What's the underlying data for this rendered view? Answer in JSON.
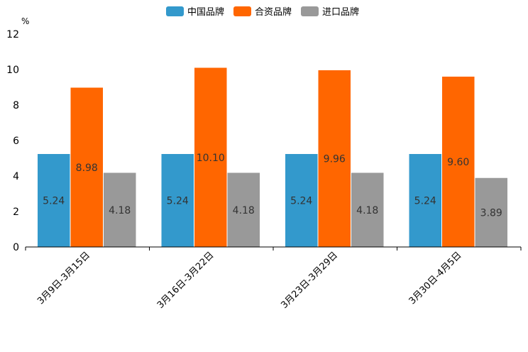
{
  "chart_data": {
    "type": "bar",
    "unit": "%",
    "categories": [
      "3月9日-3月15日",
      "3月16日-3月22日",
      "3月23日-3月29日",
      "3月30日-4月5日"
    ],
    "series": [
      {
        "name": "中国品牌",
        "color": "#3399CC",
        "values": [
          5.24,
          5.24,
          5.24,
          5.24
        ],
        "labels": [
          "5.24",
          "5.24",
          "5.24",
          "5.24"
        ]
      },
      {
        "name": "合资品牌",
        "color": "#FF6600",
        "values": [
          8.98,
          10.1,
          9.96,
          9.6
        ],
        "labels": [
          "8.98",
          "10.10",
          "9.96",
          "9.60"
        ]
      },
      {
        "name": "进口品牌",
        "color": "#999999",
        "values": [
          4.18,
          4.18,
          4.18,
          3.89
        ],
        "labels": [
          "4.18",
          "4.18",
          "4.18",
          "3.89"
        ]
      }
    ],
    "ylim": [
      0,
      12
    ],
    "yticks": [
      "0",
      "2",
      "4",
      "6",
      "8",
      "10",
      "12"
    ],
    "legend_position": "top-center"
  }
}
